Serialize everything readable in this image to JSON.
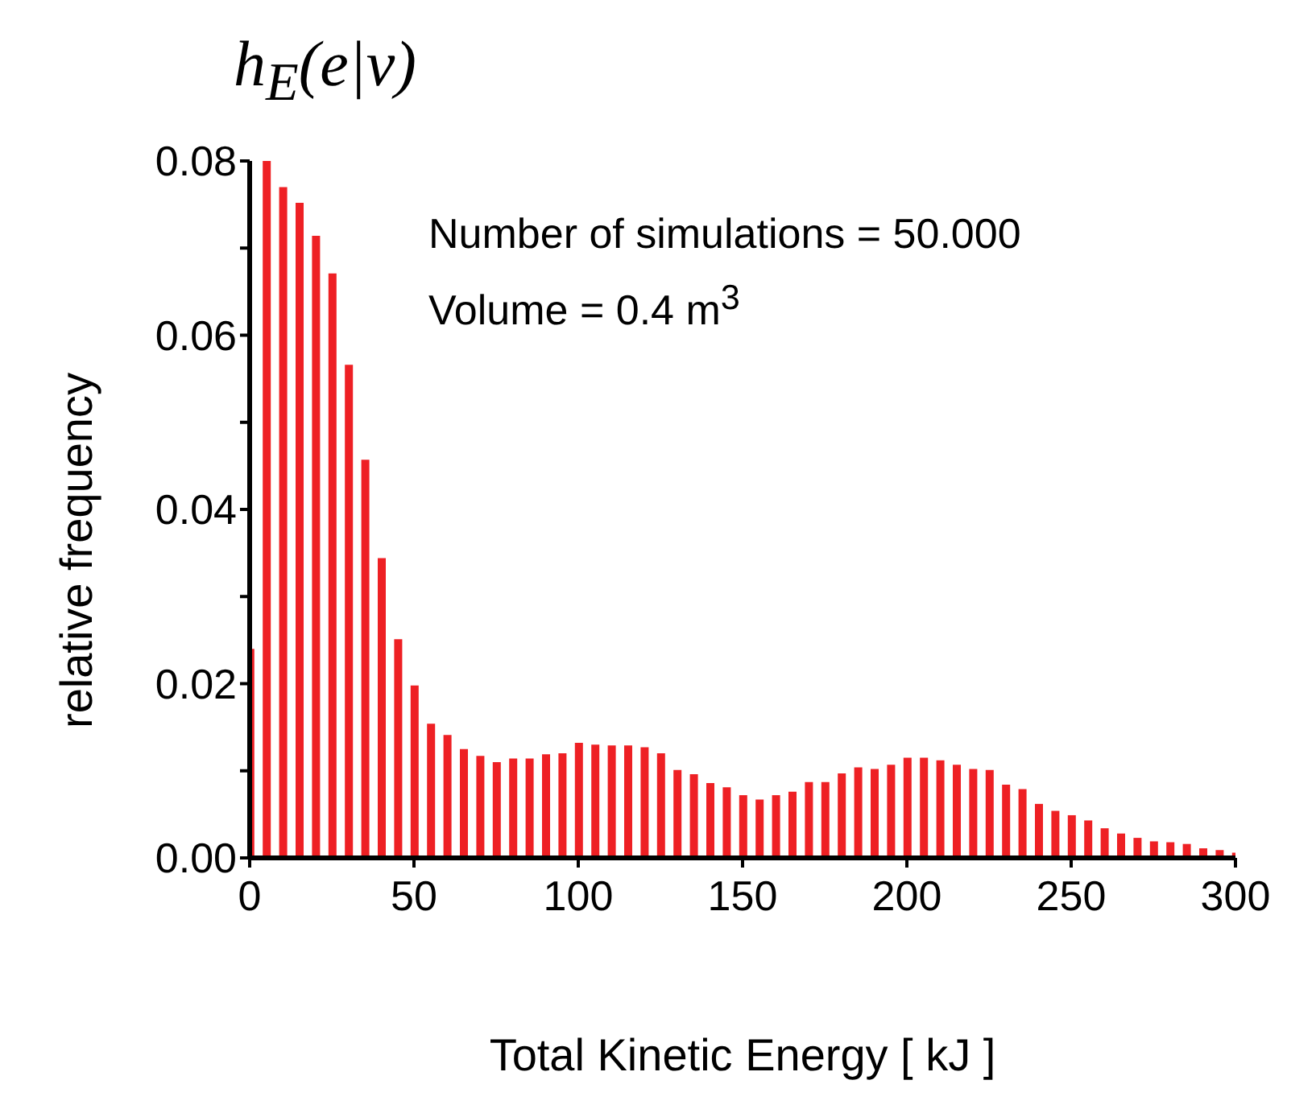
{
  "chart_data": {
    "type": "bar",
    "title": "h$_{E}$(e|v)",
    "xlabel": "Total Kinetic Energy [ kJ ]",
    "ylabel": "relative frequency",
    "annotations": [
      "Number of simulations = 50.000",
      "Volume = 0.4 m$^{3}$"
    ],
    "x": [
      0,
      5,
      10,
      15,
      20,
      25,
      30,
      35,
      40,
      45,
      50,
      55,
      60,
      65,
      70,
      75,
      80,
      85,
      90,
      95,
      100,
      105,
      110,
      115,
      120,
      125,
      130,
      135,
      140,
      145,
      150,
      155,
      160,
      165,
      170,
      175,
      180,
      185,
      190,
      195,
      200,
      205,
      210,
      215,
      220,
      225,
      230,
      235,
      240,
      245,
      250,
      255,
      260,
      265,
      270,
      275,
      280,
      285,
      290,
      295,
      300
    ],
    "values": [
      0.024,
      0.08,
      0.077,
      0.0752,
      0.0714,
      0.0671,
      0.0566,
      0.0457,
      0.0344,
      0.0251,
      0.0198,
      0.0154,
      0.0141,
      0.0125,
      0.0117,
      0.011,
      0.0114,
      0.0114,
      0.0119,
      0.012,
      0.0132,
      0.013,
      0.0129,
      0.0129,
      0.0127,
      0.012,
      0.0101,
      0.0096,
      0.0086,
      0.0081,
      0.0072,
      0.0067,
      0.0072,
      0.0076,
      0.0087,
      0.0087,
      0.0097,
      0.0104,
      0.0102,
      0.0107,
      0.0115,
      0.0115,
      0.0112,
      0.0107,
      0.0102,
      0.0101,
      0.0084,
      0.0079,
      0.0062,
      0.0054,
      0.0049,
      0.0043,
      0.0034,
      0.0028,
      0.0023,
      0.0019,
      0.0018,
      0.0016,
      0.0011,
      0.0009,
      0.0006
    ],
    "color": "#ee2024",
    "xlim": [
      0,
      300
    ],
    "xticks": [
      0,
      50,
      100,
      150,
      200,
      250,
      300
    ],
    "ylim": [
      0,
      0.08
    ],
    "yticks": [
      {
        "value": 0,
        "label": "0.00"
      },
      {
        "value": 0.01,
        "label": null
      },
      0.02,
      {
        "value": 0.03,
        "label": null
      },
      0.04,
      {
        "value": 0.05,
        "label": null
      },
      0.06,
      {
        "value": 0.07,
        "label": null
      },
      0.08
    ],
    "grid": false,
    "legend": false
  }
}
